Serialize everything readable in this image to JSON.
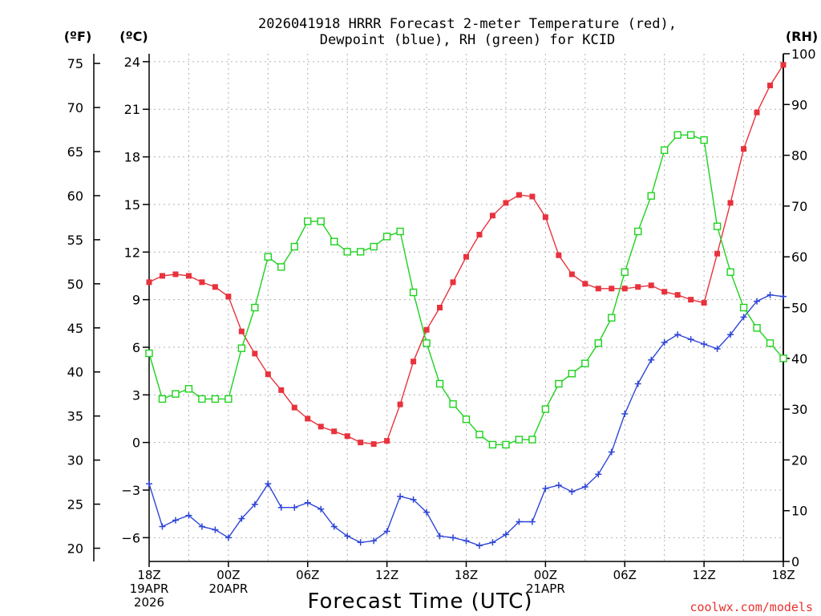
{
  "title_line1": "2026041918 HRRR Forecast 2-meter Temperature (red),",
  "title_line2": "Dewpoint (blue), RH (green) for KCID",
  "credit": "coolwx.com/models",
  "colors": {
    "temperature": "#e8323c",
    "dewpoint": "#2e45d6",
    "rh": "#1ed21e",
    "grid": "#b0b0b0"
  },
  "chart_data": {
    "type": "line",
    "title": "2026041918 HRRR Forecast 2-meter Temperature (red), Dewpoint (blue), RH (green) for KCID",
    "xlabel": "Forecast Time (UTC)",
    "grid": true,
    "y_left_unit_f": "(ºF)",
    "y_left_unit_c": "(ºC)",
    "y_right_unit": "(RH)",
    "x_range_hours": [
      0,
      48
    ],
    "y_c_range": [
      -7.5,
      24.5
    ],
    "y_rh_range": [
      0,
      100
    ],
    "y_c_ticks": [
      {
        "v": -6,
        "label": "−6"
      },
      {
        "v": -3,
        "label": "−3"
      },
      {
        "v": 0,
        "label": "0"
      },
      {
        "v": 3,
        "label": "3"
      },
      {
        "v": 6,
        "label": "6"
      },
      {
        "v": 9,
        "label": "9"
      },
      {
        "v": 12,
        "label": "12"
      },
      {
        "v": 15,
        "label": "15"
      },
      {
        "v": 18,
        "label": "18"
      },
      {
        "v": 21,
        "label": "21"
      },
      {
        "v": 24,
        "label": "24"
      }
    ],
    "y_f_ticks": [
      {
        "v": 20,
        "label": "20"
      },
      {
        "v": 25,
        "label": "25"
      },
      {
        "v": 30,
        "label": "30"
      },
      {
        "v": 35,
        "label": "35"
      },
      {
        "v": 40,
        "label": "40"
      },
      {
        "v": 45,
        "label": "45"
      },
      {
        "v": 50,
        "label": "50"
      },
      {
        "v": 55,
        "label": "55"
      },
      {
        "v": 60,
        "label": "60"
      },
      {
        "v": 65,
        "label": "65"
      },
      {
        "v": 70,
        "label": "70"
      },
      {
        "v": 75,
        "label": "75"
      }
    ],
    "y_rh_ticks": [
      {
        "v": 0,
        "label": "0"
      },
      {
        "v": 10,
        "label": "10"
      },
      {
        "v": 20,
        "label": "20"
      },
      {
        "v": 30,
        "label": "30"
      },
      {
        "v": 40,
        "label": "40"
      },
      {
        "v": 50,
        "label": "50"
      },
      {
        "v": 60,
        "label": "60"
      },
      {
        "v": 70,
        "label": "70"
      },
      {
        "v": 80,
        "label": "80"
      },
      {
        "v": 90,
        "label": "90"
      },
      {
        "v": 100,
        "label": "100"
      }
    ],
    "x_ticks": [
      {
        "h": 0,
        "lines": [
          "18Z",
          "19APR",
          "2026"
        ]
      },
      {
        "h": 6,
        "lines": [
          "00Z",
          "20APR"
        ]
      },
      {
        "h": 12,
        "lines": [
          "06Z"
        ]
      },
      {
        "h": 18,
        "lines": [
          "12Z"
        ]
      },
      {
        "h": 24,
        "lines": [
          "18Z"
        ]
      },
      {
        "h": 30,
        "lines": [
          "00Z",
          "21APR"
        ]
      },
      {
        "h": 36,
        "lines": [
          "06Z"
        ]
      },
      {
        "h": 42,
        "lines": [
          "12Z"
        ]
      },
      {
        "h": 48,
        "lines": [
          "18Z"
        ]
      }
    ],
    "series": [
      {
        "key": "temperature",
        "marker": "filled-square",
        "values": [
          10.1,
          10.5,
          10.6,
          10.5,
          10.1,
          9.8,
          9.2,
          7.0,
          5.6,
          4.3,
          3.3,
          2.2,
          1.5,
          1.0,
          0.7,
          0.4,
          0.0,
          -0.1,
          0.1,
          2.4,
          5.1,
          7.1,
          8.5,
          10.1,
          11.7,
          13.1,
          14.3,
          15.1,
          15.6,
          15.5,
          14.2,
          11.8,
          10.6,
          10.0,
          9.7,
          9.7,
          9.7,
          9.8,
          9.9,
          9.5,
          9.3,
          9.0,
          8.8,
          11.9,
          15.1,
          18.5,
          20.8,
          22.5,
          23.8
        ]
      },
      {
        "key": "dewpoint",
        "marker": "plus",
        "values": [
          -2.6,
          -5.3,
          -4.9,
          -4.6,
          -5.3,
          -5.5,
          -6.0,
          -4.8,
          -3.9,
          -2.6,
          -4.1,
          -4.1,
          -3.8,
          -4.2,
          -5.3,
          -5.9,
          -6.3,
          -6.2,
          -5.6,
          -3.4,
          -3.6,
          -4.4,
          -5.9,
          -6.0,
          -6.2,
          -6.5,
          -6.3,
          -5.8,
          -5.0,
          -5.0,
          -2.9,
          -2.7,
          -3.1,
          -2.8,
          -2.0,
          -0.6,
          1.8,
          3.7,
          5.2,
          6.3,
          6.8,
          6.5,
          6.2,
          5.9,
          6.8,
          7.9,
          8.9,
          9.3,
          9.2
        ]
      },
      {
        "key": "rh",
        "marker": "open-square",
        "values": [
          41,
          32,
          33,
          34,
          32,
          32,
          32,
          42,
          50,
          60,
          58,
          62,
          67,
          67,
          63,
          61,
          61,
          62,
          64,
          65,
          53,
          43,
          35,
          31,
          28,
          25,
          23,
          23,
          24,
          24,
          30,
          35,
          37,
          39,
          43,
          48,
          57,
          65,
          72,
          81,
          84,
          84,
          83,
          66,
          57,
          50,
          46,
          43,
          40
        ]
      }
    ]
  }
}
